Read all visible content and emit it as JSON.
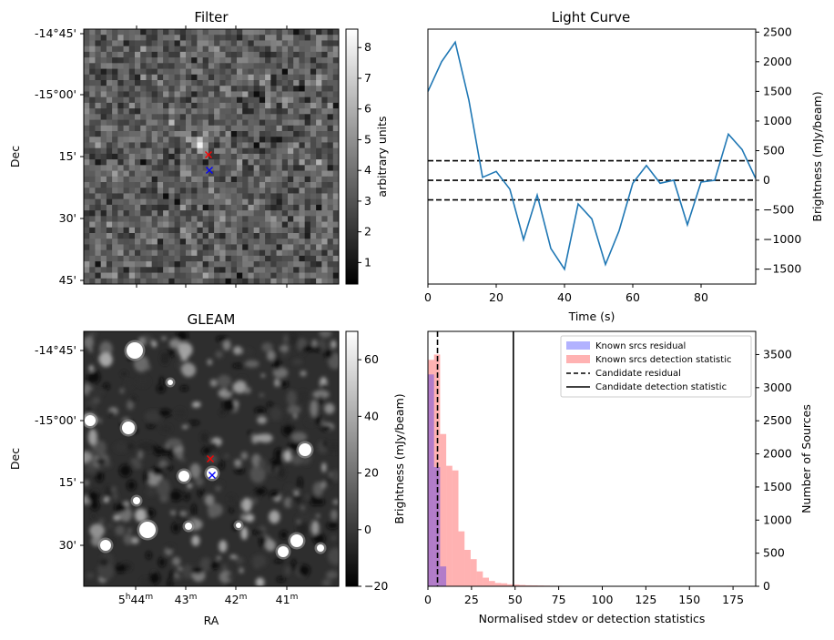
{
  "chart_data": [
    {
      "type": "heatmap",
      "title": "Filter",
      "ylabel": "Dec",
      "y_ticks": [
        "-14°45'",
        "-15°00'",
        "15'",
        "30'",
        "45'"
      ],
      "colorbar": {
        "label": "arbitrary units",
        "ticks": [
          1,
          2,
          3,
          4,
          5,
          6,
          7,
          8
        ],
        "range": [
          0.3,
          8.6
        ],
        "cmap": "gray"
      },
      "markers": [
        {
          "name": "red-x",
          "color": "#ff0000"
        },
        {
          "name": "blue-x",
          "color": "#0000ff"
        }
      ]
    },
    {
      "type": "line",
      "title": "Light Curve",
      "xlabel": "Time (s)",
      "ylabel": "Brightness (mJy/beam)",
      "xlim": [
        0,
        96
      ],
      "ylim": [
        -1750,
        2550
      ],
      "x_ticks": [
        0,
        20,
        40,
        60,
        80
      ],
      "y_ticks": [
        -1500,
        -1000,
        -500,
        0,
        500,
        1000,
        1500,
        2000,
        2500
      ],
      "color": "#1f77b4",
      "series": [
        {
          "x": [
            0,
            4,
            8,
            12,
            16,
            20,
            24,
            28,
            32,
            36,
            40,
            44,
            48,
            52,
            56,
            60,
            64,
            68,
            72,
            76,
            80,
            84,
            88,
            92,
            96
          ],
          "y": [
            1500,
            2000,
            2330,
            1350,
            50,
            150,
            -150,
            -1000,
            -250,
            -1150,
            -1500,
            -400,
            -650,
            -1420,
            -850,
            -50,
            250,
            -50,
            0,
            -750,
            -30,
            0,
            780,
            520,
            30
          ]
        }
      ],
      "hlines": [
        330,
        0,
        -330
      ],
      "hline_color": "#000000"
    },
    {
      "type": "heatmap",
      "title": "GLEAM",
      "xlabel": "RA",
      "ylabel": "Dec",
      "x_ticks": [
        "5h44m",
        "43m",
        "42m",
        "41m"
      ],
      "y_ticks": [
        "-14°45'",
        "-15°00'",
        "15'",
        "30'"
      ],
      "colorbar": {
        "ticks": [
          -20,
          0,
          20,
          40,
          60
        ],
        "range": [
          -20,
          70
        ],
        "cmap": "gray"
      },
      "markers": [
        {
          "name": "red-x",
          "color": "#ff0000"
        },
        {
          "name": "blue-x",
          "color": "#0000ff"
        }
      ]
    },
    {
      "type": "bar",
      "xlabel": "Normalised stdev or detection statistics",
      "ylabel_left": "Brightness (mJy/beam)",
      "ylabel_right": "Number of Sources",
      "xlim": [
        0,
        188
      ],
      "ylim": [
        0,
        3850
      ],
      "x_ticks": [
        0,
        25,
        50,
        75,
        100,
        125,
        150,
        175
      ],
      "y_ticks": [
        0,
        500,
        1000,
        1500,
        2000,
        2500,
        3000,
        3500
      ],
      "bin_width": 3.5,
      "series": [
        {
          "name": "Known srcs residual",
          "color": "#0000ff",
          "alpha": 0.3,
          "bins": [
            0,
            3.5,
            7
          ],
          "values": [
            3200,
            1800,
            300
          ]
        },
        {
          "name": "Known srcs detection statistic",
          "color": "#ff0000",
          "alpha": 0.3,
          "bins": [
            0,
            3.5,
            7,
            10.5,
            14,
            17.5,
            21,
            24.5,
            28,
            31.5,
            35,
            38.5,
            42,
            45.5,
            49,
            52.5,
            56,
            59.5,
            63,
            66.5,
            70,
            73.5,
            77,
            80.5,
            84,
            87.5,
            91,
            94.5,
            98,
            101.5,
            105,
            108.5,
            112,
            115.5,
            119,
            122.5,
            126,
            129.5,
            133,
            136.5,
            140,
            143.5,
            147,
            150.5,
            154,
            157.5,
            161,
            164.5,
            168,
            171.5,
            175,
            178.5,
            182
          ],
          "values": [
            3420,
            3500,
            2300,
            1820,
            1750,
            830,
            550,
            410,
            225,
            130,
            80,
            50,
            45,
            30,
            25,
            20,
            15,
            14,
            12,
            10,
            8,
            8,
            5,
            5,
            4,
            3,
            3,
            2,
            2,
            2,
            2,
            2,
            2,
            2,
            2,
            2,
            2,
            2,
            2,
            1,
            1,
            2,
            1,
            1,
            1,
            1,
            1,
            2,
            4,
            8,
            3,
            3,
            2
          ]
        }
      ],
      "vlines": [
        {
          "name": "Candidate residual",
          "x": 5.5,
          "style": "dashed",
          "color": "#000000"
        },
        {
          "name": "Candidate detection statistic",
          "x": 49,
          "style": "solid",
          "color": "#000000"
        }
      ],
      "legend": "top-right"
    }
  ]
}
